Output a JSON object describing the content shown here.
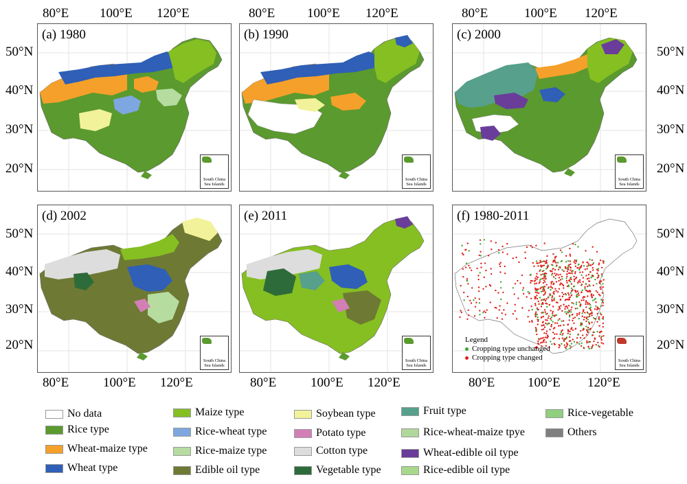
{
  "axes": {
    "lon_ticks": [
      "80°E",
      "100°E",
      "120°E"
    ],
    "lat_ticks": [
      "50°N",
      "40°N",
      "30°N",
      "20°N"
    ]
  },
  "panels": [
    {
      "id": "a",
      "title": "(a) 1980"
    },
    {
      "id": "b",
      "title": "(b) 1990"
    },
    {
      "id": "c",
      "title": "(c) 2000"
    },
    {
      "id": "d",
      "title": "(d) 2002"
    },
    {
      "id": "e",
      "title": "(e) 2011"
    },
    {
      "id": "f",
      "title": "(f) 1980-2011"
    }
  ],
  "inset_label": "South China Sea Islands",
  "change_legend": {
    "title": "Legend",
    "unchanged": "Cropping type unchanged",
    "changed": "Cropping type changed",
    "unchanged_color": "#3aa832",
    "changed_color": "#e0201b"
  },
  "legend": [
    {
      "label": "No data",
      "color": "#ffffff"
    },
    {
      "label": "Rice type",
      "color": "#5b9a2e"
    },
    {
      "label": "Wheat-maize type",
      "color": "#f5a02a"
    },
    {
      "label": "Wheat type",
      "color": "#2f5fb6"
    },
    {
      "label": "Maize type",
      "color": "#86bf22"
    },
    {
      "label": "Rice-wheat type",
      "color": "#7ea6e0"
    },
    {
      "label": "Rice-maize type",
      "color": "#b6dca0"
    },
    {
      "label": "Edible oil type",
      "color": "#6e7a34"
    },
    {
      "label": "Soybean type",
      "color": "#f2f29a"
    },
    {
      "label": "Potato type",
      "color": "#d27fb5"
    },
    {
      "label": "Cotton type",
      "color": "#dddddd"
    },
    {
      "label": "Vegetable type",
      "color": "#2e6b3a"
    },
    {
      "label": "Fruit type",
      "color": "#56a08c"
    },
    {
      "label": "Rice-wheat-maize tpye",
      "color": "#b0d89a"
    },
    {
      "label": "Wheat-edible oil type",
      "color": "#6a3d9a"
    },
    {
      "label": "Rice-edible oil type",
      "color": "#a8d88c"
    },
    {
      "label": "Rice-vegetable",
      "color": "#8fcf7e"
    },
    {
      "label": "Others",
      "color": "#7f7f7f"
    }
  ]
}
